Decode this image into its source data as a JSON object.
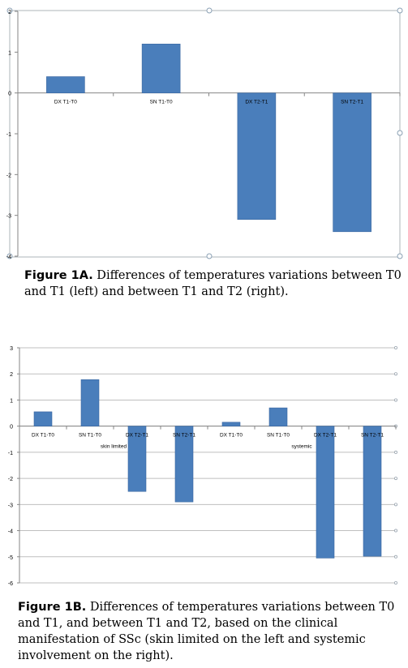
{
  "figure_a": {
    "caption_label": "Figure 1A.",
    "caption_text": " Differences of temperatures variations between T0 and T1 (left) and between T1 and T2 (right)."
  },
  "figure_b": {
    "caption_label": "Figure 1B.",
    "caption_text": " Differences of temperatures variations between T0 and T1, and between T1 and T2, based on the clinical manifestation of SSc (skin limited on the left and systemic involvement on the right)."
  },
  "colors": {
    "bar": "#4a7ebb",
    "bar_edge": "#3a67a0",
    "axis": "#868686",
    "grid": "#bfbfbf"
  },
  "chart_data": [
    {
      "type": "bar",
      "categories": [
        "DX T1-T0",
        "SN T1-T0",
        "DX T2-T1",
        "SN T2-T1"
      ],
      "values": [
        0.4,
        1.2,
        -3.1,
        -3.4
      ],
      "ylim": [
        -4,
        2
      ],
      "yticks": [
        2,
        1,
        0,
        -1,
        -2,
        -3,
        -4
      ],
      "grid": false
    },
    {
      "type": "bar",
      "categories": [
        "DX T1-T0",
        "SN T1-T0",
        "DX T2-T1",
        "SN T2-T1",
        "DX T1-T0",
        "SN T1-T0",
        "DX T2-T1",
        "SN T2-T1"
      ],
      "groups": [
        {
          "label": "skin limited",
          "count": 4
        },
        {
          "label": "systemic",
          "count": 4
        }
      ],
      "values": [
        0.55,
        1.78,
        -2.5,
        -2.9,
        0.15,
        0.7,
        -5.05,
        -4.98
      ],
      "ylim": [
        -6,
        3
      ],
      "yticks": [
        3,
        2,
        1,
        0,
        -1,
        -2,
        -3,
        -4,
        -5,
        -6
      ],
      "grid": true
    }
  ]
}
